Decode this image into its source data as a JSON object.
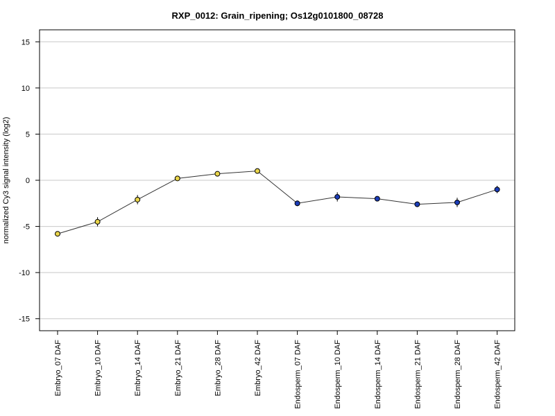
{
  "chart_data": {
    "type": "line",
    "title": "RXP_0012: Grain_ripening; Os12g0101800_08728",
    "xlabel": "",
    "ylabel": "normalized Cy3 signal intensity (log2)",
    "ylim": [
      -16.3,
      16.3
    ],
    "yticks": [
      15,
      10,
      5,
      0,
      -5,
      -10,
      -15
    ],
    "ytick_labels": [
      "15",
      "10",
      "5",
      "0",
      "-5",
      "-10",
      "-15"
    ],
    "grid": "horizontal",
    "categories": [
      "Embryo_07 DAF",
      "Embryo_10 DAF",
      "Embryo_14 DAF",
      "Embryo_21 DAF",
      "Embryo_28 DAF",
      "Embryo_42 DAF",
      "Endosperm_07 DAF",
      "Endosperm_10 DAF",
      "Endosperm_14 DAF",
      "Endosperm_21 DAF",
      "Endosperm_28 DAF",
      "Endosperm_42 DAF"
    ],
    "series": [
      {
        "values": [
          -5.8,
          -4.5,
          -2.1,
          0.2,
          0.7,
          1.0,
          -2.5,
          -1.8,
          -2.0,
          -2.6,
          -2.4,
          -1.0
        ],
        "errors": [
          0.2,
          0.5,
          0.5,
          0.2,
          0.2,
          0.2,
          0.3,
          0.5,
          0.2,
          0.3,
          0.5,
          0.4
        ],
        "point_colors": [
          "#e8d44a",
          "#e8d44a",
          "#e8d44a",
          "#e8d44a",
          "#e8d44a",
          "#e8d44a",
          "#1c3db8",
          "#1c3db8",
          "#1c3db8",
          "#1c3db8",
          "#1c3db8",
          "#1c3db8"
        ]
      }
    ],
    "colors": {
      "line": "#333333",
      "grid": "#c8c8c8",
      "frame": "#000000",
      "marker_edge": "#000000"
    }
  }
}
